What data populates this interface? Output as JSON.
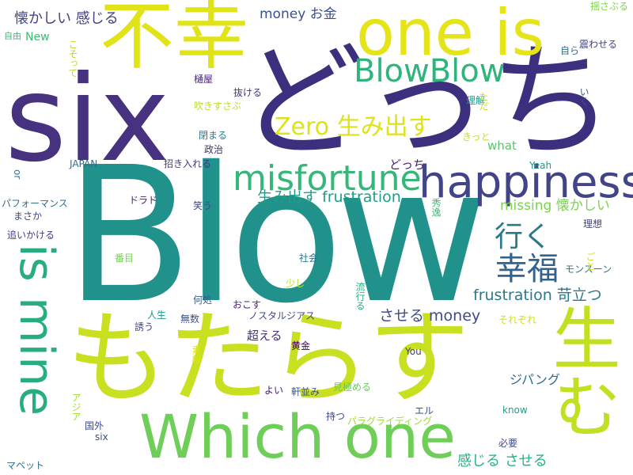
{
  "words": [
    {
      "text": "Blow",
      "color": "#21918c"
    },
    {
      "text": "どっち",
      "color": "#3b2f7e"
    },
    {
      "text": "six",
      "color": "#46327e"
    },
    {
      "text": "もたらす",
      "color": "#c8e020"
    },
    {
      "text": "不幸",
      "color": "#dfe318"
    },
    {
      "text": "one is",
      "color": "#e5e419"
    },
    {
      "text": "Which one",
      "color": "#6ece58"
    },
    {
      "text": "生む",
      "color": "#c2df23"
    },
    {
      "text": "is mine",
      "color": "#27ad81"
    },
    {
      "text": "happiness",
      "color": "#414487"
    },
    {
      "text": "misfortune",
      "color": "#35b779"
    },
    {
      "text": "BlowBlow",
      "color": "#2fb47c"
    },
    {
      "text": "Zero 生み出す",
      "color": "#dde318"
    },
    {
      "text": "行く",
      "color": "#2a788e"
    },
    {
      "text": "幸福",
      "color": "#33638d"
    },
    {
      "text": "frustration 苛立つ",
      "color": "#2a788e"
    },
    {
      "text": "させる money",
      "color": "#3e4a89"
    },
    {
      "text": "生み出す frustration",
      "color": "#1f9e89"
    },
    {
      "text": "missing 懐かしい",
      "color": "#7ad151"
    },
    {
      "text": "懐かしい 感じる",
      "color": "#424086"
    },
    {
      "text": "money お金",
      "color": "#3b518b"
    },
    {
      "text": "感じる させる",
      "color": "#2ab07f"
    },
    {
      "text": "ジパング",
      "color": "#2e6e8e"
    },
    {
      "text": "what",
      "color": "#56c667"
    },
    {
      "text": "どっち",
      "color": "#482173"
    },
    {
      "text": "超える",
      "color": "#46307e"
    },
    {
      "text": "パフォーマンス",
      "color": "#2d708e"
    },
    {
      "text": "New",
      "color": "#3aba76"
    },
    {
      "text": "揺さぶる",
      "color": "#7fd34e"
    },
    {
      "text": "自ら",
      "color": "#2c728e"
    },
    {
      "text": "震わせる",
      "color": "#404387"
    },
    {
      "text": "抜ける",
      "color": "#46337f"
    },
    {
      "text": "吹きすさぶ",
      "color": "#b8de29"
    },
    {
      "text": "閉まる",
      "color": "#287d8e"
    },
    {
      "text": "政治",
      "color": "#472d7b"
    },
    {
      "text": "招き入れる",
      "color": "#453781"
    },
    {
      "text": "JAPAN",
      "color": "#2e6e8e"
    },
    {
      "text": "ドラド",
      "color": "#481f70"
    },
    {
      "text": "笑う",
      "color": "#3f4788"
    },
    {
      "text": "まさか",
      "color": "#404688"
    },
    {
      "text": "追いかける",
      "color": "#453882"
    },
    {
      "text": "番目",
      "color": "#75d054"
    },
    {
      "text": "社会",
      "color": "#2b758e"
    },
    {
      "text": "少し",
      "color": "#bddf26"
    },
    {
      "text": "何処",
      "color": "#375b8d"
    },
    {
      "text": "おこす",
      "color": "#482475"
    },
    {
      "text": "ノスタルジアス",
      "color": "#3f4889"
    },
    {
      "text": "人生",
      "color": "#1f968b"
    },
    {
      "text": "無数",
      "color": "#3b528b"
    },
    {
      "text": "誘う",
      "color": "#424186"
    },
    {
      "text": "黄金",
      "color": "#440154"
    },
    {
      "text": "You",
      "color": "#433e85"
    },
    {
      "text": "よい",
      "color": "#48186a"
    },
    {
      "text": "軒並み",
      "color": "#39568c"
    },
    {
      "text": "見極める",
      "color": "#63cb5f"
    },
    {
      "text": "エル",
      "color": "#3b528b"
    },
    {
      "text": "持つ",
      "color": "#3f4788"
    },
    {
      "text": "パラグライディング",
      "color": "#a2da37"
    },
    {
      "text": "国外",
      "color": "#3e4989"
    },
    {
      "text": "six",
      "color": "#3b518b"
    },
    {
      "text": "know",
      "color": "#1f9e89"
    },
    {
      "text": "必要",
      "color": "#3e4989"
    },
    {
      "text": "マペット",
      "color": "#2c718e"
    },
    {
      "text": "Yeah",
      "color": "#1f968b"
    },
    {
      "text": "理想",
      "color": "#414287"
    },
    {
      "text": "モンスーン",
      "color": "#2c728e"
    },
    {
      "text": "樋屋",
      "color": "#482878"
    },
    {
      "text": "きっと",
      "color": "#bddf26"
    },
    {
      "text": "それぞれ",
      "color": "#d0e11c"
    },
    {
      "text": "理解",
      "color": "#1e9c89"
    },
    {
      "text": "自由",
      "color": "#3dbc74"
    },
    {
      "text": "or",
      "color": "#2c728e"
    },
    {
      "text": "いく",
      "color": "#3b528b"
    },
    {
      "text": "ごと",
      "color": "#d5e21a"
    },
    {
      "text": "ただ",
      "color": "#c5e021"
    },
    {
      "text": "こそって",
      "color": "#b5de2b"
    },
    {
      "text": "流行る",
      "color": "#29af7f"
    },
    {
      "text": "秀逸",
      "color": "#38b977"
    },
    {
      "text": "アジア",
      "color": "#a5db36"
    },
    {
      "text": "素敵",
      "color": "#dde318"
    }
  ]
}
